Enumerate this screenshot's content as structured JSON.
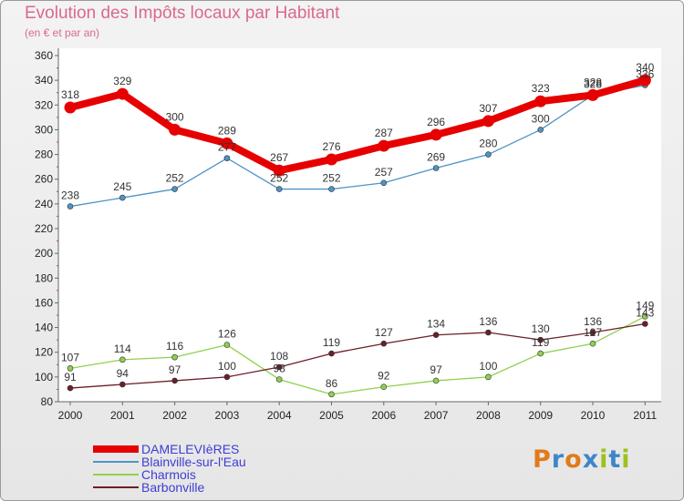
{
  "title": "Evolution des Impôts locaux par Habitant",
  "subtitle": "(en € et par an)",
  "brand": {
    "letters": [
      "P",
      "r",
      "o",
      "x",
      "i",
      "t",
      "i"
    ],
    "colors": [
      "#e07b1a",
      "#3f86c8",
      "#e07b1a",
      "#3f86c8",
      "#9bc31b",
      "#3f86c8",
      "#9bc31b"
    ]
  },
  "chart_data": {
    "type": "line",
    "x": [
      "2000",
      "2001",
      "2002",
      "2003",
      "2004",
      "2005",
      "2006",
      "2007",
      "2008",
      "2009",
      "2010",
      "2011"
    ],
    "ylim": [
      80,
      360
    ],
    "yticks": [
      80,
      100,
      120,
      140,
      160,
      180,
      200,
      220,
      240,
      260,
      280,
      300,
      320,
      340,
      360
    ],
    "grid": false,
    "legend_position": "bottom-left",
    "series": [
      {
        "name": "Blainville-sur-l'Eau",
        "color": "#4d94c6",
        "values": [
          238,
          245,
          252,
          277,
          252,
          252,
          257,
          269,
          280,
          300,
          328,
          336
        ],
        "labels": [
          "238",
          "245",
          "252",
          "277",
          "252",
          "252",
          "257",
          "269",
          "280",
          "300",
          "328",
          "336"
        ]
      },
      {
        "name": "Charmois",
        "color": "#8fd14f",
        "values": [
          107,
          114,
          116,
          126,
          98,
          86,
          92,
          97,
          100,
          119,
          127,
          149
        ],
        "labels": [
          "107",
          "114",
          "116",
          "126",
          "98",
          "86",
          "92",
          "97",
          "100",
          "119",
          "127",
          "149"
        ]
      },
      {
        "name": "Barbonville",
        "color": "#6b1f2a",
        "values": [
          91,
          94,
          97,
          100,
          108,
          119,
          127,
          134,
          136,
          130,
          136,
          143
        ],
        "labels": [
          "91",
          "94",
          "97",
          "100",
          "108",
          "119",
          "127",
          "134",
          "136",
          "130",
          "136",
          "143"
        ]
      },
      {
        "name": "DAMELEVIèRES",
        "color": "#e60000",
        "values": [
          318,
          329,
          300,
          289,
          267,
          276,
          287,
          296,
          307,
          323,
          328,
          340
        ],
        "labels": [
          "318",
          "329",
          "300",
          "289",
          "267",
          "276",
          "287",
          "296",
          "307",
          "323",
          "328",
          "340"
        ]
      }
    ],
    "legend_order": [
      "DAMELEVIèRES",
      "Blainville-sur-l'Eau",
      "Charmois",
      "Barbonville"
    ]
  }
}
